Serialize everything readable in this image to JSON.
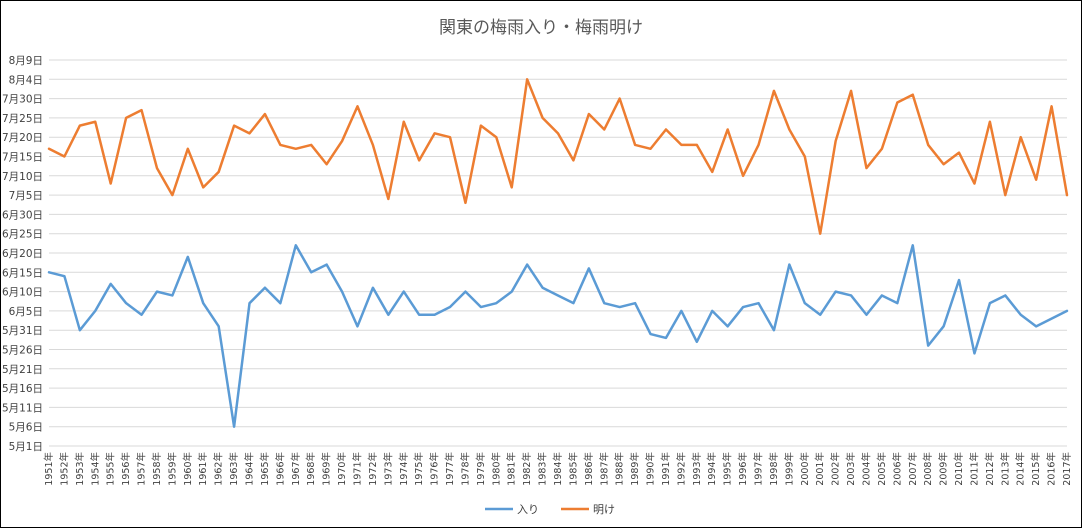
{
  "chart_data": {
    "type": "line",
    "title": "関東の梅雨入り・梅雨明け",
    "xlabel": "",
    "ylabel": "",
    "y_ticks": [
      "5月1日",
      "5月6日",
      "5月11日",
      "5月16日",
      "5月21日",
      "5月26日",
      "5月31日",
      "6月5日",
      "6月10日",
      "6月15日",
      "6月20日",
      "6月25日",
      "6月30日",
      "7月5日",
      "7月10日",
      "7月15日",
      "7月20日",
      "7月25日",
      "7月30日",
      "8月4日",
      "8月9日"
    ],
    "y_unit": "day-of-year",
    "ylim": [
      121,
      221
    ],
    "grid": true,
    "legend_position": "bottom",
    "categories": [
      "1951年",
      "1952年",
      "1953年",
      "1954年",
      "1955年",
      "1956年",
      "1957年",
      "1958年",
      "1959年",
      "1960年",
      "1961年",
      "1962年",
      "1963年",
      "1964年",
      "1965年",
      "1966年",
      "1967年",
      "1968年",
      "1969年",
      "1970年",
      "1971年",
      "1972年",
      "1973年",
      "1974年",
      "1975年",
      "1976年",
      "1977年",
      "1978年",
      "1979年",
      "1980年",
      "1981年",
      "1982年",
      "1983年",
      "1984年",
      "1985年",
      "1986年",
      "1987年",
      "1988年",
      "1989年",
      "1990年",
      "1991年",
      "1992年",
      "1993年",
      "1994年",
      "1995年",
      "1996年",
      "1997年",
      "1998年",
      "1999年",
      "2000年",
      "2001年",
      "2002年",
      "2003年",
      "2004年",
      "2005年",
      "2006年",
      "2007年",
      "2008年",
      "2009年",
      "2010年",
      "2011年",
      "2012年",
      "2013年",
      "2014年",
      "2015年",
      "2016年",
      "2017年"
    ],
    "series": [
      {
        "name": "入り",
        "color": "#5b9bd5",
        "values": [
          166,
          165,
          151,
          156,
          163,
          158,
          155,
          161,
          160,
          170,
          158,
          152,
          126,
          158,
          162,
          158,
          173,
          166,
          168,
          161,
          152,
          162,
          155,
          161,
          155,
          155,
          157,
          161,
          157,
          158,
          161,
          168,
          162,
          160,
          158,
          167,
          158,
          157,
          158,
          150,
          149,
          156,
          148,
          156,
          152,
          157,
          158,
          151,
          168,
          158,
          155,
          161,
          160,
          155,
          160,
          158,
          173,
          147,
          152,
          164,
          145,
          158,
          160,
          155,
          152,
          154,
          156
        ]
      },
      {
        "name": "明け",
        "color": "#ed7d31",
        "values": [
          198,
          196,
          204,
          205,
          189,
          206,
          208,
          193,
          186,
          198,
          188,
          192,
          204,
          202,
          207,
          199,
          198,
          199,
          194,
          200,
          209,
          199,
          185,
          205,
          195,
          202,
          201,
          184,
          204,
          201,
          188,
          216,
          206,
          202,
          195,
          207,
          203,
          211,
          199,
          198,
          203,
          199,
          199,
          192,
          203,
          191,
          199,
          213,
          203,
          196,
          176,
          200,
          213,
          193,
          198,
          210,
          212,
          199,
          194,
          197,
          189,
          205,
          186,
          201,
          190,
          209,
          186
        ]
      }
    ]
  }
}
